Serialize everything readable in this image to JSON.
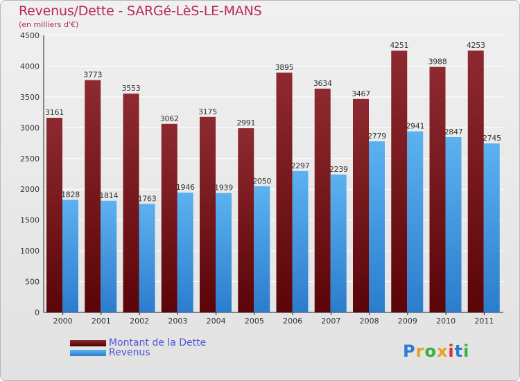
{
  "header": {
    "title": "Revenus/Dette - SARGé-LèS-LE-MANS",
    "subtitle": "(en milliers d'€)"
  },
  "chart_data": {
    "type": "bar",
    "title": "Revenus/Dette - SARGé-LèS-LE-MANS",
    "subtitle": "(en milliers d'€)",
    "categories": [
      "2000",
      "2001",
      "2002",
      "2003",
      "2004",
      "2005",
      "2006",
      "2007",
      "2008",
      "2009",
      "2010",
      "2011"
    ],
    "series": [
      {
        "name": "Montant de la Dette",
        "color": "#7d1a1f",
        "values": [
          3161,
          3773,
          3553,
          3062,
          3175,
          2991,
          3895,
          3634,
          3467,
          4251,
          3988,
          4253
        ]
      },
      {
        "name": "Revenus",
        "color": "#4aa3e6",
        "values": [
          1828,
          1814,
          1763,
          1946,
          1939,
          2050,
          2297,
          2239,
          2779,
          2941,
          2847,
          2745
        ]
      }
    ],
    "ylim": [
      0,
      4500
    ],
    "yticks": [
      0,
      500,
      1000,
      1500,
      2000,
      2500,
      3000,
      3500,
      4000,
      4500
    ],
    "grid": true,
    "legend": "bottom-left"
  },
  "legend": {
    "items": [
      {
        "label": "Montant de la Dette",
        "color": "#6b0f14"
      },
      {
        "label": "Revenus",
        "color": "#4aa3e6"
      }
    ]
  },
  "logo": {
    "letters": [
      "P",
      "r",
      "o",
      "x",
      "i",
      "t",
      "i"
    ],
    "colors": [
      "#2e7bd6",
      "#e8a020",
      "#38b038",
      "#e8a020",
      "#d83030",
      "#2e7bd6",
      "#38b038"
    ]
  }
}
